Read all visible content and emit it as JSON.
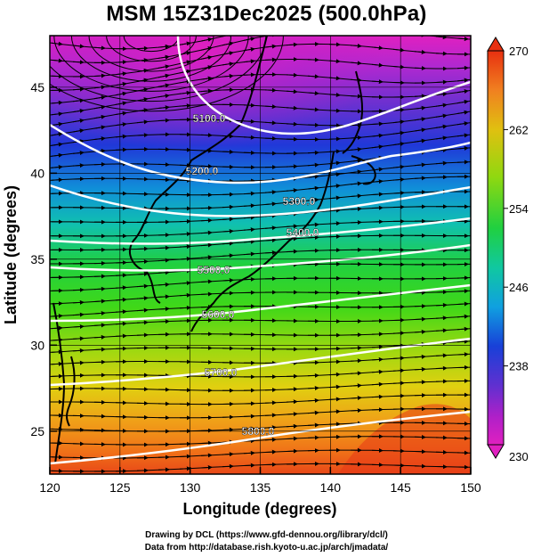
{
  "title": "MSM 15Z31Dec2025 (500.0hPa)",
  "xlabel": "Longitude (degrees)",
  "ylabel": "Latitude  (degrees)",
  "x_ticks": [
    "120",
    "125",
    "130",
    "135",
    "140",
    "145",
    "150"
  ],
  "y_ticks": [
    "25",
    "30",
    "35",
    "40",
    "45"
  ],
  "colorbar": {
    "min_label": "230",
    "max_label": "270",
    "tick_labels": [
      "262",
      "254",
      "246",
      "238"
    ]
  },
  "footer": {
    "line1": "Drawing by DCL (https://www.gfd-dennou.org/library/dcl/)",
    "line2": "Data from http://database.rish.kyoto-u.ac.jp/arch/jmadata/"
  },
  "chart_data": {
    "type": "heatmap",
    "variable": "temperature with geopotential height contours and wind streamlines",
    "x_range": [
      120,
      150
    ],
    "y_range": [
      22.5,
      48
    ],
    "colorbar_range": [
      230,
      270
    ],
    "colorbar_ticks": [
      230,
      238,
      246,
      254,
      262,
      270
    ],
    "contour_levels": [
      {
        "value": 5100,
        "label": "5100.0"
      },
      {
        "value": 5200,
        "label": "5200.0"
      },
      {
        "value": 5300,
        "label": "5300.0"
      },
      {
        "value": 5400,
        "label": "5400.0"
      },
      {
        "value": 5500,
        "label": "5500.0"
      },
      {
        "value": 5600,
        "label": "5600.0"
      },
      {
        "value": 5700,
        "label": "5700.0"
      },
      {
        "value": 5800,
        "label": "5800.0"
      }
    ],
    "colors": {
      "magenta": "#e020c0",
      "purple": "#8030d0",
      "blue": "#1830d8",
      "cyan": "#10b0d0",
      "green": "#20d020",
      "yellow": "#e0d010",
      "orange": "#f09020",
      "red": "#e83010"
    }
  }
}
